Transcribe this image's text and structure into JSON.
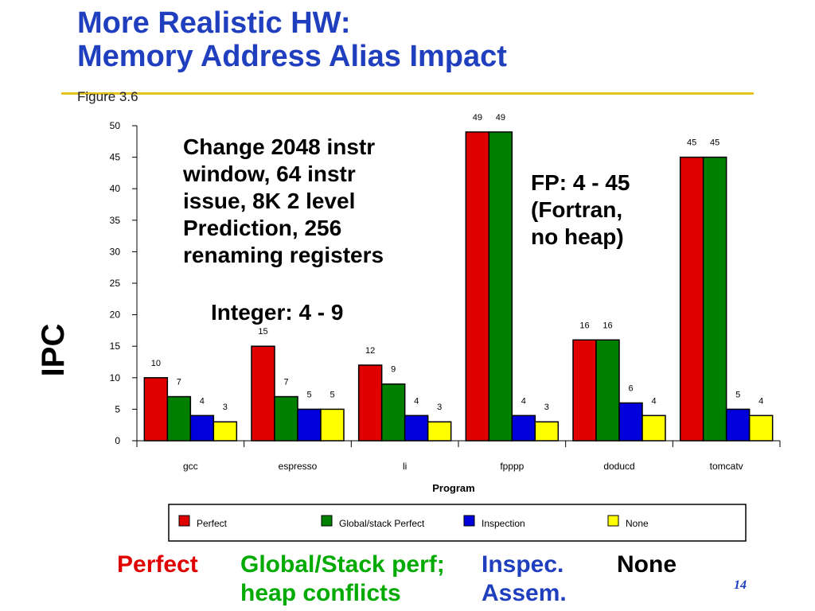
{
  "slide": {
    "title_line1": "More Realistic HW:",
    "title_line2": "Memory Address Alias Impact",
    "figure_ref": "Figure 3.6",
    "page_number": "14"
  },
  "annotations": {
    "config_lines": [
      "Change  2048 instr",
      "window, 64 instr",
      "issue, 8K 2 level",
      "Prediction, 256",
      "renaming registers"
    ],
    "integer_range": "Integer: 4 - 9",
    "fp_lines": [
      "FP: 4 - 45",
      "(Fortran,",
      "no heap)"
    ]
  },
  "bottom_legend": {
    "perfect": "Perfect",
    "global_line1": "Global/Stack perf;",
    "global_line2": "heap conflicts",
    "inspec_line1": "Inspec.",
    "inspec_line2": "Assem.",
    "none": "None"
  },
  "colors": {
    "perfect": "#e00000",
    "global": "#008000",
    "inspection": "#0000dd",
    "none": "#ffff00",
    "title": "#1f3fbf",
    "rule": "#e5c420",
    "green_text": "#00aa00"
  },
  "chart_data": {
    "type": "bar",
    "ylabel": "IPC",
    "xlabel": "Program",
    "ylim": [
      0,
      50
    ],
    "yticks": [
      0,
      5,
      10,
      15,
      20,
      25,
      30,
      35,
      40,
      45,
      50
    ],
    "categories": [
      "gcc",
      "espresso",
      "li",
      "fpppp",
      "doducd",
      "tomcatv"
    ],
    "series": [
      {
        "name": "Perfect",
        "color": "#e00000",
        "values": [
          10,
          15,
          12,
          49,
          16,
          45
        ]
      },
      {
        "name": "Global/stack Perfect",
        "color": "#008000",
        "values": [
          7,
          7,
          9,
          49,
          16,
          45
        ]
      },
      {
        "name": "Inspection",
        "color": "#0000dd",
        "values": [
          4,
          5,
          4,
          4,
          6,
          5
        ]
      },
      {
        "name": "None",
        "color": "#ffff00",
        "values": [
          3,
          5,
          3,
          3,
          4,
          4
        ]
      }
    ],
    "legend_position": "bottom"
  }
}
